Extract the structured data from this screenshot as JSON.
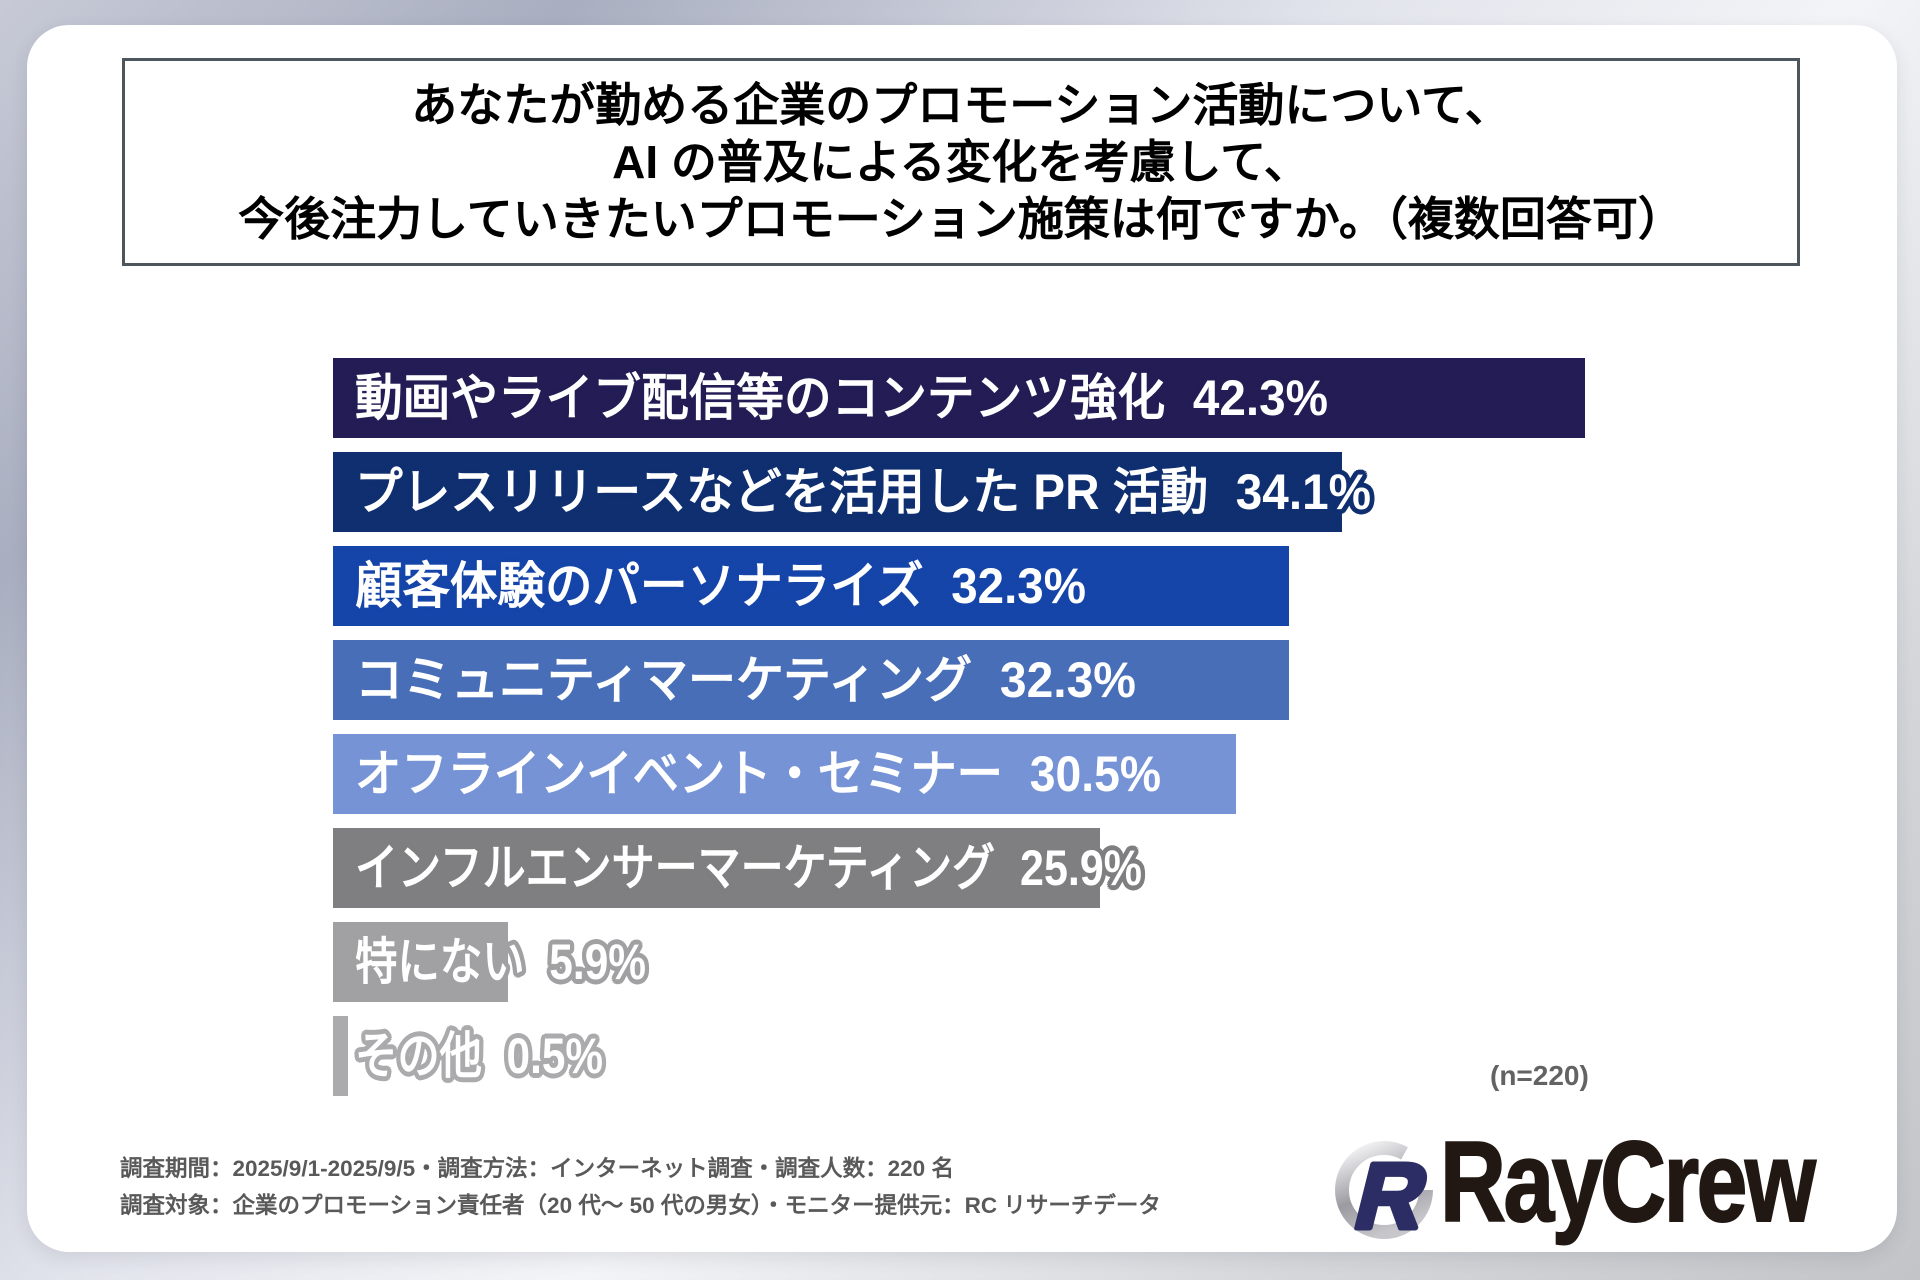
{
  "title": {
    "lines": [
      "あなたが勤める企業のプロモーション活動について、",
      "AI の普及による変化を考慮して、",
      "今後注力していきたいプロモーション施策は何ですか。（複数回答可）"
    ]
  },
  "chart_data": {
    "type": "bar",
    "orientation": "horizontal",
    "categories": [
      "動画やライブ配信等のコンテンツ強化",
      "プレスリリースなどを活用した PR 活動",
      "顧客体験のパーソナライズ",
      "コミュニティマーケティング",
      "オフラインイベント・セミナー",
      "インフルエンサーマーケティング",
      "特にない",
      "その他"
    ],
    "values": [
      42.3,
      34.1,
      32.3,
      32.3,
      30.5,
      25.9,
      5.9,
      0.5
    ],
    "value_labels": [
      "42.3%",
      "34.1%",
      "32.3%",
      "32.3%",
      "30.5%",
      "25.9%",
      "5.9%",
      "0.5%"
    ],
    "bar_colors": [
      "#231c55",
      "#0f2f70",
      "#1545a9",
      "#486eb8",
      "#7693d6",
      "#7f7f81",
      "#a1a1a3",
      "#ababad"
    ],
    "xlim": [
      0,
      50.7
    ],
    "axes_visible": false,
    "sample_note": "(n=220)"
  },
  "footer": {
    "line1": "調査期間：2025/9/1-2025/9/5・調査方法：インターネット調査・調査人数：220 名",
    "line2": "調査対象：企業のプロモーション責任者（20 代〜 50 代の男女）・モニター提供元：RC リサーチデータ"
  },
  "logo": {
    "text": "RayCrew"
  }
}
